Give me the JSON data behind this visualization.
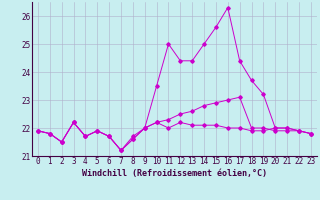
{
  "xlabel": "Windchill (Refroidissement éolien,°C)",
  "background_color": "#c8eef0",
  "grid_color": "#b0b0cc",
  "line_color": "#cc00cc",
  "x": [
    0,
    1,
    2,
    3,
    4,
    5,
    6,
    7,
    8,
    9,
    10,
    11,
    12,
    13,
    14,
    15,
    16,
    17,
    18,
    19,
    20,
    21,
    22,
    23
  ],
  "series1": [
    21.9,
    21.8,
    21.5,
    22.2,
    21.7,
    21.9,
    21.7,
    21.2,
    21.6,
    22.0,
    22.2,
    22.0,
    22.2,
    22.1,
    22.1,
    22.1,
    22.0,
    22.0,
    21.9,
    21.9,
    22.0,
    22.0,
    21.9,
    21.8
  ],
  "series2": [
    21.9,
    21.8,
    21.5,
    22.2,
    21.7,
    21.9,
    21.7,
    21.2,
    21.6,
    22.0,
    23.5,
    25.0,
    24.4,
    24.4,
    25.0,
    25.6,
    26.3,
    24.4,
    23.7,
    23.2,
    22.0,
    22.0,
    21.9,
    21.8
  ],
  "series3": [
    21.9,
    21.8,
    21.5,
    22.2,
    21.7,
    21.9,
    21.7,
    21.2,
    21.7,
    22.0,
    22.2,
    22.3,
    22.5,
    22.6,
    22.8,
    22.9,
    23.0,
    23.1,
    22.0,
    22.0,
    21.9,
    21.9,
    21.9,
    21.8
  ],
  "ylim": [
    21.0,
    26.5
  ],
  "yticks": [
    21,
    22,
    23,
    24,
    25,
    26
  ],
  "xticks": [
    0,
    1,
    2,
    3,
    4,
    5,
    6,
    7,
    8,
    9,
    10,
    11,
    12,
    13,
    14,
    15,
    16,
    17,
    18,
    19,
    20,
    21,
    22,
    23
  ],
  "xlabel_fontsize": 6,
  "tick_fontsize": 5.5
}
